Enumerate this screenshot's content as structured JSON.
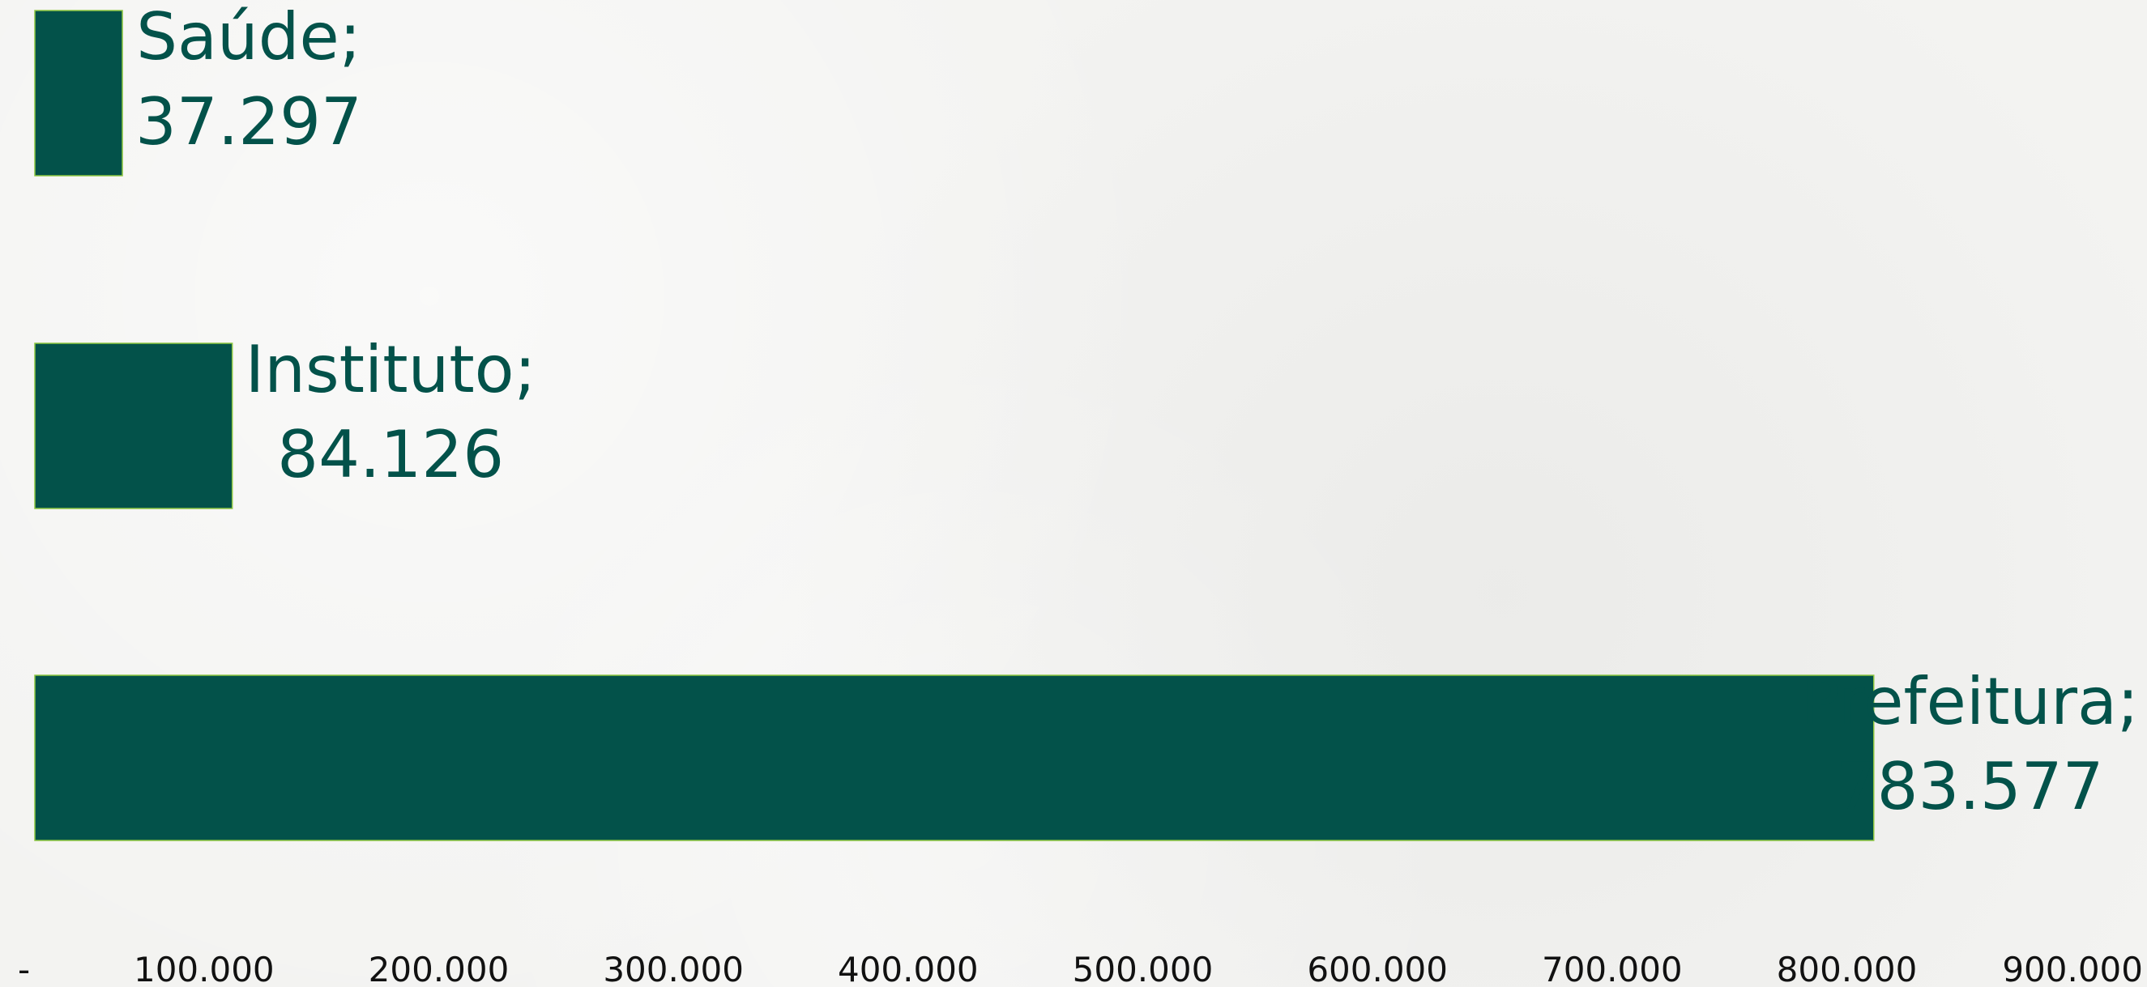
{
  "chart_data": {
    "type": "bar",
    "orientation": "horizontal",
    "title": "",
    "xlabel": "",
    "ylabel": "",
    "categories": [
      "Saúde",
      "Instituto",
      "Prefeitura"
    ],
    "values": [
      37297,
      84126,
      783577
    ],
    "data_labels": [
      {
        "category": "Saúde;",
        "value": "37.297"
      },
      {
        "category": "Instituto;",
        "value": "84.126"
      },
      {
        "category": "Prefeitura;",
        "value": "783.577"
      }
    ],
    "xlim": [
      0,
      900000
    ],
    "x_ticks": [
      0,
      100000,
      200000,
      300000,
      400000,
      500000,
      600000,
      700000,
      800000,
      900000
    ],
    "x_tick_labels": [
      "-",
      "100.000",
      "200.000",
      "300.000",
      "400.000",
      "500.000",
      "600.000",
      "700.000",
      "800.000",
      "900.000"
    ],
    "grid": false,
    "legend": "none",
    "colors": {
      "bar_fill": "#03524a",
      "bar_edge": "#8cc63f",
      "label": "#03524a",
      "tick_label": "#111111"
    }
  }
}
